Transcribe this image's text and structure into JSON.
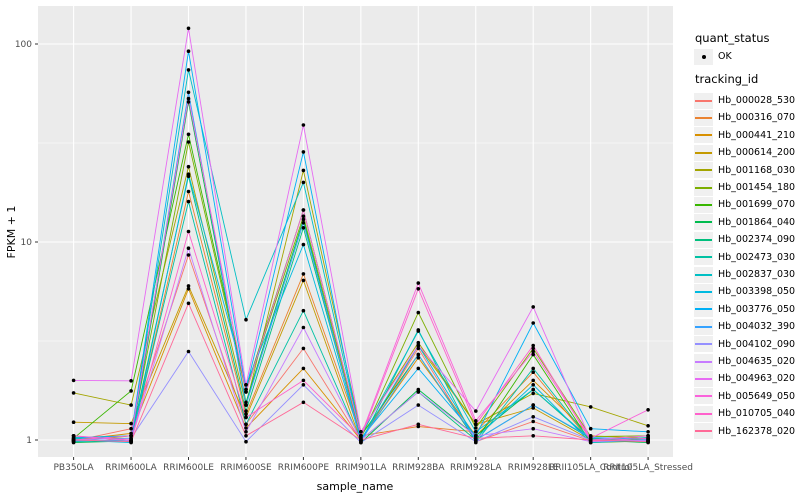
{
  "chart_data": {
    "type": "line",
    "title": "",
    "xlabel": "sample_name",
    "ylabel": "FPKM + 1",
    "y_scale": "log10",
    "ylim": [
      0.82,
      155
    ],
    "y_ticks": [
      1,
      10,
      100
    ],
    "y_tick_labels": [
      "1",
      "10",
      "100"
    ],
    "y_minor_ticks": [
      3.1623,
      31.623
    ],
    "grid": "white major and minor on gray panel",
    "legend_position": "right",
    "point_shape": "black dot on every value",
    "x_categories": [
      "PB350LA",
      "RRIM600LA",
      "RRIM600LE",
      "RRIM600SE",
      "RRIM600PE",
      "RRIM901LA",
      "RRIM928BA",
      "RRIM928LA",
      "RRIM928LE",
      "RRII105LA_Control",
      "RRII105LA_Stressed"
    ],
    "legend": {
      "quant_status_title": "quant_status",
      "quant_status_items": [
        "OK"
      ],
      "tracking_id_title": "tracking_id"
    },
    "colors": {
      "panel_bg": "#ebebeb",
      "grid_line": "#ffffff",
      "point": "#000000",
      "tick_text": "#4d4d4d",
      "legend_key_bg": "#f0f0f0"
    },
    "series": [
      {
        "name": "Hb_000028_530",
        "color": "#F8766D",
        "values": [
          0.99,
          1.14,
          8.6,
          1.2,
          2.9,
          0.99,
          2.9,
          0.98,
          1.24,
          0.99,
          0.98
        ]
      },
      {
        "name": "Hb_000316_070",
        "color": "#EA8331",
        "values": [
          1.05,
          0.98,
          18,
          1.35,
          6.9,
          1.05,
          1.17,
          1.1,
          2.2,
          0.98,
          1.0
        ]
      },
      {
        "name": "Hb_000441_210",
        "color": "#D89000",
        "values": [
          1.0,
          1.08,
          5.8,
          1.15,
          2.3,
          1.0,
          2.6,
          1.05,
          2.0,
          1.05,
          1.02
        ]
      },
      {
        "name": "Hb_000614_200",
        "color": "#C49A00",
        "values": [
          1.23,
          1.21,
          6.0,
          1.3,
          6.4,
          0.98,
          3.0,
          1.2,
          1.45,
          1.0,
          1.05
        ]
      },
      {
        "name": "Hb_001168_030",
        "color": "#A3A500",
        "values": [
          1.73,
          1.5,
          24,
          1.5,
          23,
          1.1,
          3.1,
          1.2,
          1.72,
          1.47,
          1.18
        ]
      },
      {
        "name": "Hb_001454_180",
        "color": "#7CAE00",
        "values": [
          0.98,
          1.05,
          32,
          1.75,
          13.5,
          1.02,
          4.4,
          1.15,
          2.9,
          1.04,
          1.05
        ]
      },
      {
        "name": "Hb_001699_070",
        "color": "#39B600",
        "values": [
          1.02,
          1.77,
          35,
          1.8,
          14.5,
          1.05,
          2.7,
          0.99,
          2.7,
          0.97,
          0.99
        ]
      },
      {
        "name": "Hb_001864_040",
        "color": "#00BB4E",
        "values": [
          0.97,
          0.99,
          51,
          1.55,
          13,
          0.97,
          1.8,
          1.05,
          1.8,
          1.0,
          0.97
        ]
      },
      {
        "name": "Hb_002374_090",
        "color": "#00BF7D",
        "values": [
          1.01,
          1.02,
          21.5,
          1.4,
          11.8,
          1.0,
          1.75,
          1.0,
          1.5,
          1.02,
          1.0
        ]
      },
      {
        "name": "Hb_002473_030",
        "color": "#00C1A3",
        "values": [
          0.98,
          1.0,
          16,
          1.2,
          4.5,
          0.98,
          3.6,
          0.97,
          2.3,
          0.99,
          1.03
        ]
      },
      {
        "name": "Hb_002837_030",
        "color": "#00BFC4",
        "values": [
          1.03,
          1.05,
          74,
          4.05,
          20,
          1.05,
          3.55,
          1.1,
          1.8,
          1.01,
          0.98
        ]
      },
      {
        "name": "Hb_003398_050",
        "color": "#00BAE0",
        "values": [
          1.0,
          0.97,
          22,
          1.9,
          9.7,
          1.0,
          3.0,
          1.02,
          1.9,
          0.97,
          1.0
        ]
      },
      {
        "name": "Hb_003776_050",
        "color": "#00B0F6",
        "values": [
          1.02,
          1.05,
          92,
          1.8,
          28.5,
          1.02,
          2.3,
          1.05,
          3.9,
          1.14,
          1.1
        ]
      },
      {
        "name": "Hb_004032_390",
        "color": "#35A2FF",
        "values": [
          0.99,
          1.0,
          57,
          1.5,
          12.5,
          0.99,
          2.7,
          1.0,
          1.5,
          1.03,
          1.01
        ]
      },
      {
        "name": "Hb_004102_090",
        "color": "#9590FF",
        "values": [
          1.0,
          1.02,
          2.8,
          0.98,
          1.9,
          0.97,
          1.5,
          0.98,
          1.31,
          1.0,
          0.99
        ]
      },
      {
        "name": "Hb_004635_020",
        "color": "#C77CFF",
        "values": [
          1.05,
          0.99,
          9.3,
          1.1,
          3.7,
          1.0,
          1.75,
          1.05,
          1.14,
          0.98,
          1.0
        ]
      },
      {
        "name": "Hb_004963_020",
        "color": "#E76BF3",
        "values": [
          2.0,
          1.99,
          120,
          1.9,
          39,
          1.1,
          3.0,
          1.4,
          4.7,
          1.0,
          1.05
        ]
      },
      {
        "name": "Hb_005649_050",
        "color": "#FA62DB",
        "values": [
          1.0,
          1.05,
          53,
          1.75,
          14.5,
          1.05,
          6.2,
          1.25,
          2.8,
          1.02,
          1.42
        ]
      },
      {
        "name": "Hb_010705_040",
        "color": "#FF61CC",
        "values": [
          1.05,
          1.0,
          11.3,
          1.3,
          2.0,
          1.03,
          5.8,
          1.2,
          3.0,
          0.99,
          1.02
        ]
      },
      {
        "name": "Hb_162378_020",
        "color": "#FF6A98",
        "values": [
          1.0,
          0.98,
          4.9,
          1.05,
          1.55,
          1.0,
          1.2,
          1.02,
          1.05,
          1.0,
          0.98
        ]
      }
    ]
  }
}
